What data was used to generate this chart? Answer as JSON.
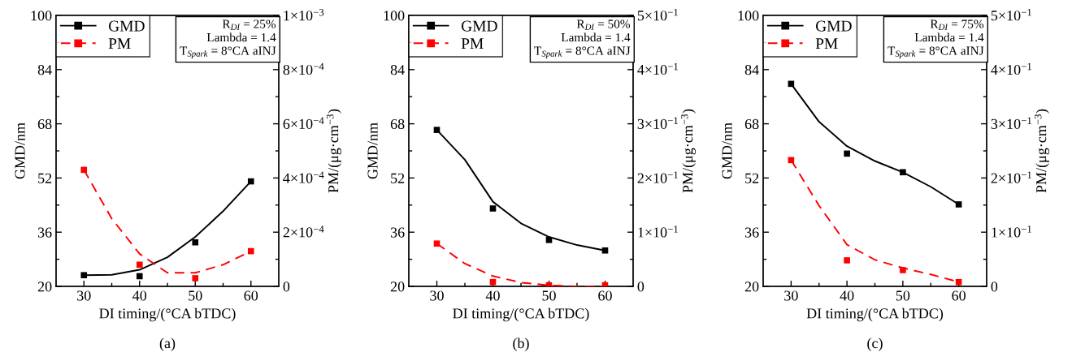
{
  "chart_data": [
    {
      "type": "scatter",
      "title": "(a)",
      "xlabel": "DI timing/(°CA bTDC)",
      "ylabel": "GMD/nm",
      "y2label": "PM/(μg·cm$^{−3}$)",
      "annotations": [
        "R$_{DI}$ = 25%",
        "Lambda = 1.4",
        "T$_{Spark}$ = 8°CA aINJ"
      ],
      "xlim": [
        25,
        65
      ],
      "xticks": [
        30,
        {
          "value": 35,
          "label": null
        },
        40,
        {
          "value": 45,
          "label": null
        },
        50,
        {
          "value": 55,
          "label": null
        },
        60
      ],
      "ylim": [
        20,
        100
      ],
      "yticks": [
        20,
        {
          "value": 28,
          "label": null
        },
        36,
        {
          "value": 44,
          "label": null
        },
        52,
        {
          "value": 60,
          "label": null
        },
        68,
        {
          "value": 76,
          "label": null
        },
        84,
        {
          "value": 92,
          "label": null
        },
        100
      ],
      "y2lim": [
        0,
        0.001
      ],
      "y2ticks": [
        {
          "value": 0,
          "label": "0"
        },
        {
          "value": 0.0001,
          "label": null
        },
        {
          "value": 0.0002,
          "label": "2×10$^{−4}$"
        },
        {
          "value": 0.0003,
          "label": null
        },
        {
          "value": 0.0004,
          "label": "4×10$^{−4}$"
        },
        {
          "value": 0.0005,
          "label": null
        },
        {
          "value": 0.0006,
          "label": "6×10$^{−4}$"
        },
        {
          "value": 0.0007,
          "label": null
        },
        {
          "value": 0.0008,
          "label": "8×10$^{−4}$"
        },
        {
          "value": 0.0009,
          "label": null
        },
        {
          "value": 0.001,
          "label": "1×10$^{−3}$"
        }
      ],
      "legend": "top left",
      "series": [
        {
          "name": "GMD",
          "marker": "square",
          "color": "#000000",
          "x": [
            30,
            40,
            50,
            60
          ],
          "values": [
            23.3,
            23.0,
            33.0,
            51.0
          ]
        },
        {
          "type": "line",
          "marker": "none",
          "line_style": "solid",
          "color": "#000000",
          "x": [
            30,
            35,
            40,
            45,
            50,
            55,
            60
          ],
          "values": [
            23.3,
            23.4,
            24.9,
            28.6,
            34.6,
            42.2,
            51.0
          ]
        },
        {
          "name": "PM",
          "marker": "square",
          "axis": "y2",
          "color": "#ff0000",
          "x": [
            30,
            40,
            50,
            60
          ],
          "values": [
            0.00043,
            8e-05,
            3e-05,
            0.00013
          ]
        },
        {
          "type": "line",
          "marker": "none",
          "axis": "y2",
          "line_style": "dashed",
          "color": "#ff0000",
          "x": [
            30,
            35,
            40,
            45,
            48,
            50,
            55,
            60
          ],
          "values": [
            0.00043,
            0.00025,
            0.00012,
            5e-05,
            5e-05,
            5e-05,
            8e-05,
            0.00013
          ]
        }
      ]
    },
    {
      "type": "scatter",
      "title": "(b)",
      "xlabel": "DI timing/(°CA bTDC)",
      "ylabel": "GMD/nm",
      "y2label": "PM/(μg·cm$^{−3}$)",
      "annotations": [
        "R$_{DI}$ = 50%",
        "Lambda = 1.4",
        "T$_{Spark}$ = 8°CA aINJ"
      ],
      "xlim": [
        25,
        65
      ],
      "xticks": [
        30,
        {
          "value": 35,
          "label": null
        },
        40,
        {
          "value": 45,
          "label": null
        },
        50,
        {
          "value": 55,
          "label": null
        },
        60
      ],
      "ylim": [
        20,
        100
      ],
      "yticks": [
        20,
        {
          "value": 28,
          "label": null
        },
        36,
        {
          "value": 44,
          "label": null
        },
        52,
        {
          "value": 60,
          "label": null
        },
        68,
        {
          "value": 76,
          "label": null
        },
        84,
        {
          "value": 92,
          "label": null
        },
        100
      ],
      "y2lim": [
        0,
        0.5
      ],
      "y2ticks": [
        {
          "value": 0,
          "label": "0"
        },
        {
          "value": 0.05,
          "label": null
        },
        {
          "value": 0.1,
          "label": "1×10$^{−1}$"
        },
        {
          "value": 0.15,
          "label": null
        },
        {
          "value": 0.2,
          "label": "2×10$^{−1}$"
        },
        {
          "value": 0.25,
          "label": null
        },
        {
          "value": 0.3,
          "label": "3×10$^{−1}$"
        },
        {
          "value": 0.35,
          "label": null
        },
        {
          "value": 0.4,
          "label": "4×10$^{−1}$"
        },
        {
          "value": 0.45,
          "label": null
        },
        {
          "value": 0.5,
          "label": "5×10$^{−1}$"
        }
      ],
      "legend": "top left",
      "series": [
        {
          "name": "GMD",
          "marker": "square",
          "color": "#000000",
          "x": [
            30,
            40,
            50,
            60
          ],
          "values": [
            66.2,
            43.0,
            33.7,
            30.6
          ]
        },
        {
          "type": "line",
          "marker": "none",
          "line_style": "solid",
          "color": "#000000",
          "x": [
            30,
            35,
            40,
            45,
            50,
            55,
            60
          ],
          "values": [
            66.2,
            57.4,
            45.0,
            38.6,
            34.6,
            32.2,
            30.6
          ]
        },
        {
          "name": "PM",
          "marker": "square",
          "axis": "y2",
          "color": "#ff0000",
          "x": [
            30,
            40,
            50,
            60
          ],
          "values": [
            0.079,
            0.008,
            0.002,
            0.002
          ]
        },
        {
          "type": "line",
          "marker": "none",
          "axis": "y2",
          "line_style": "dashed",
          "color": "#ff0000",
          "x": [
            30,
            35,
            40,
            45,
            50,
            55,
            60
          ],
          "values": [
            0.079,
            0.042,
            0.019,
            0.007,
            0.002,
            0.0,
            0.0
          ]
        }
      ]
    },
    {
      "type": "scatter",
      "title": "(c)",
      "xlabel": "DI timing/(°CA bTDC)",
      "ylabel": "GMD/nm",
      "y2label": "PM/(μg·cm$^{−3}$)",
      "annotations": [
        "R$_{DI}$ = 75%",
        "Lambda = 1.4",
        "T$_{Spark}$ = 8°CA aINJ"
      ],
      "xlim": [
        25,
        65
      ],
      "xticks": [
        30,
        {
          "value": 35,
          "label": null
        },
        40,
        {
          "value": 45,
          "label": null
        },
        50,
        {
          "value": 55,
          "label": null
        },
        60
      ],
      "ylim": [
        20,
        100
      ],
      "yticks": [
        20,
        {
          "value": 28,
          "label": null
        },
        36,
        {
          "value": 44,
          "label": null
        },
        52,
        {
          "value": 60,
          "label": null
        },
        68,
        {
          "value": 76,
          "label": null
        },
        84,
        {
          "value": 92,
          "label": null
        },
        100
      ],
      "y2lim": [
        0,
        0.5
      ],
      "y2ticks": [
        {
          "value": 0,
          "label": "0"
        },
        {
          "value": 0.05,
          "label": null
        },
        {
          "value": 0.1,
          "label": "1×10$^{−1}$"
        },
        {
          "value": 0.15,
          "label": null
        },
        {
          "value": 0.2,
          "label": "2×10$^{−1}$"
        },
        {
          "value": 0.25,
          "label": null
        },
        {
          "value": 0.3,
          "label": "3×10$^{−1}$"
        },
        {
          "value": 0.35,
          "label": null
        },
        {
          "value": 0.4,
          "label": "4×10$^{−1}$"
        },
        {
          "value": 0.45,
          "label": null
        },
        {
          "value": 0.5,
          "label": "5×10$^{−1}$"
        }
      ],
      "legend": "top left",
      "series": [
        {
          "name": "GMD",
          "marker": "square",
          "color": "#000000",
          "x": [
            30,
            40,
            50,
            60
          ],
          "values": [
            79.8,
            59.2,
            53.7,
            44.2
          ]
        },
        {
          "type": "line",
          "marker": "none",
          "line_style": "solid",
          "color": "#000000",
          "x": [
            30,
            35,
            40,
            45,
            50,
            55,
            60
          ],
          "values": [
            79.8,
            68.6,
            61.4,
            57.0,
            53.7,
            49.4,
            44.2
          ]
        },
        {
          "name": "PM",
          "marker": "square",
          "axis": "y2",
          "color": "#ff0000",
          "x": [
            30,
            40,
            50,
            60
          ],
          "values": [
            0.233,
            0.048,
            0.03,
            0.008
          ]
        },
        {
          "type": "line",
          "marker": "none",
          "axis": "y2",
          "line_style": "dashed",
          "color": "#ff0000",
          "x": [
            30,
            35,
            40,
            45,
            50,
            55,
            60
          ],
          "values": [
            0.233,
            0.149,
            0.077,
            0.049,
            0.034,
            0.022,
            0.008
          ]
        }
      ]
    }
  ]
}
